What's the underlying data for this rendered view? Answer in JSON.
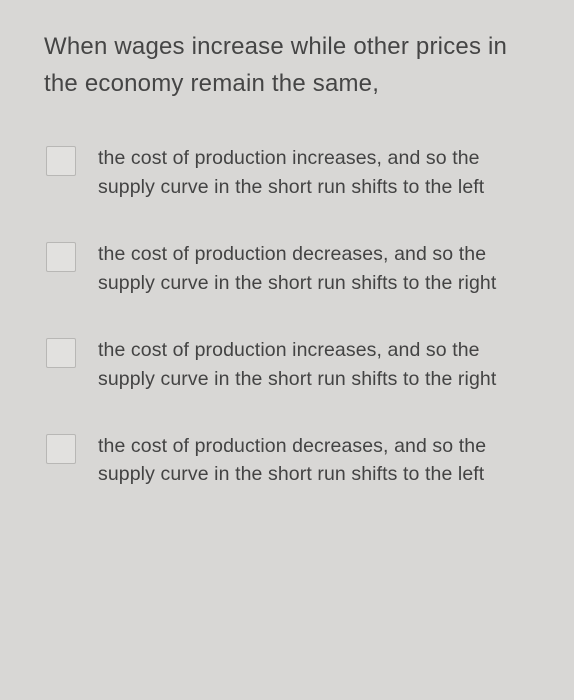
{
  "question": {
    "text": "When wages increase while other prices in the economy remain the same,",
    "font_size": 24,
    "text_color": "#454545"
  },
  "options": [
    {
      "text": "the cost of production increases, and so the supply curve in the short run shifts to the left",
      "checked": false
    },
    {
      "text": "the cost of production decreases, and so the supply curve in the short run shifts to the right",
      "checked": false
    },
    {
      "text": "the cost of production increases, and so the supply curve in the short run shifts to the right",
      "checked": false
    },
    {
      "text": "the cost of production decreases, and so the supply curve in the short run shifts to the left",
      "checked": false
    }
  ],
  "styling": {
    "background_color": "#d8d7d5",
    "checkbox_size": 30,
    "checkbox_border_color": "#b8b7b5",
    "checkbox_bg_color": "#e2e1df",
    "option_font_size": 19.5,
    "option_text_color": "#434343"
  }
}
